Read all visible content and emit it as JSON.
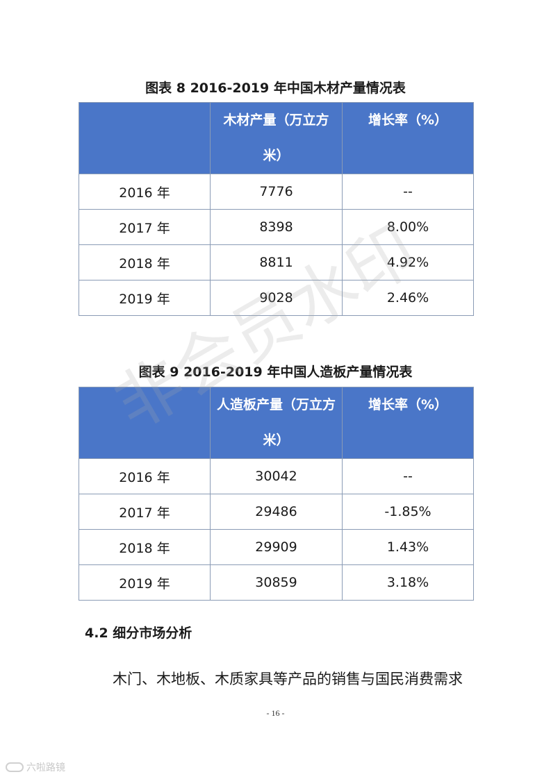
{
  "table8": {
    "caption": "图表 8 2016-2019 年中国木材产量情况表",
    "headers": [
      "",
      "木材产量（万立方米）",
      "增长率（%）"
    ],
    "rows": [
      [
        "2016 年",
        "7776",
        "--"
      ],
      [
        "2017 年",
        "8398",
        "8.00%"
      ],
      [
        "2018 年",
        "8811",
        "4.92%"
      ],
      [
        "2019 年",
        "9028",
        "2.46%"
      ]
    ]
  },
  "table9": {
    "caption": "图表 9 2016-2019 年中国人造板产量情况表",
    "headers": [
      "",
      "人造板产量（万立方米）",
      "增长率（%）"
    ],
    "rows": [
      [
        "2016 年",
        "30042",
        "--"
      ],
      [
        "2017 年",
        "29486",
        "-1.85%"
      ],
      [
        "2018 年",
        "29909",
        "1.43%"
      ],
      [
        "2019 年",
        "30859",
        "3.18%"
      ]
    ]
  },
  "section_heading": "4.2 细分市场分析",
  "paragraph": "木门、木地板、木质家具等产品的销售与国民消费需求",
  "page_number": "- 16 -",
  "watermark": "非会员水印",
  "brand": "六啦路镜"
}
